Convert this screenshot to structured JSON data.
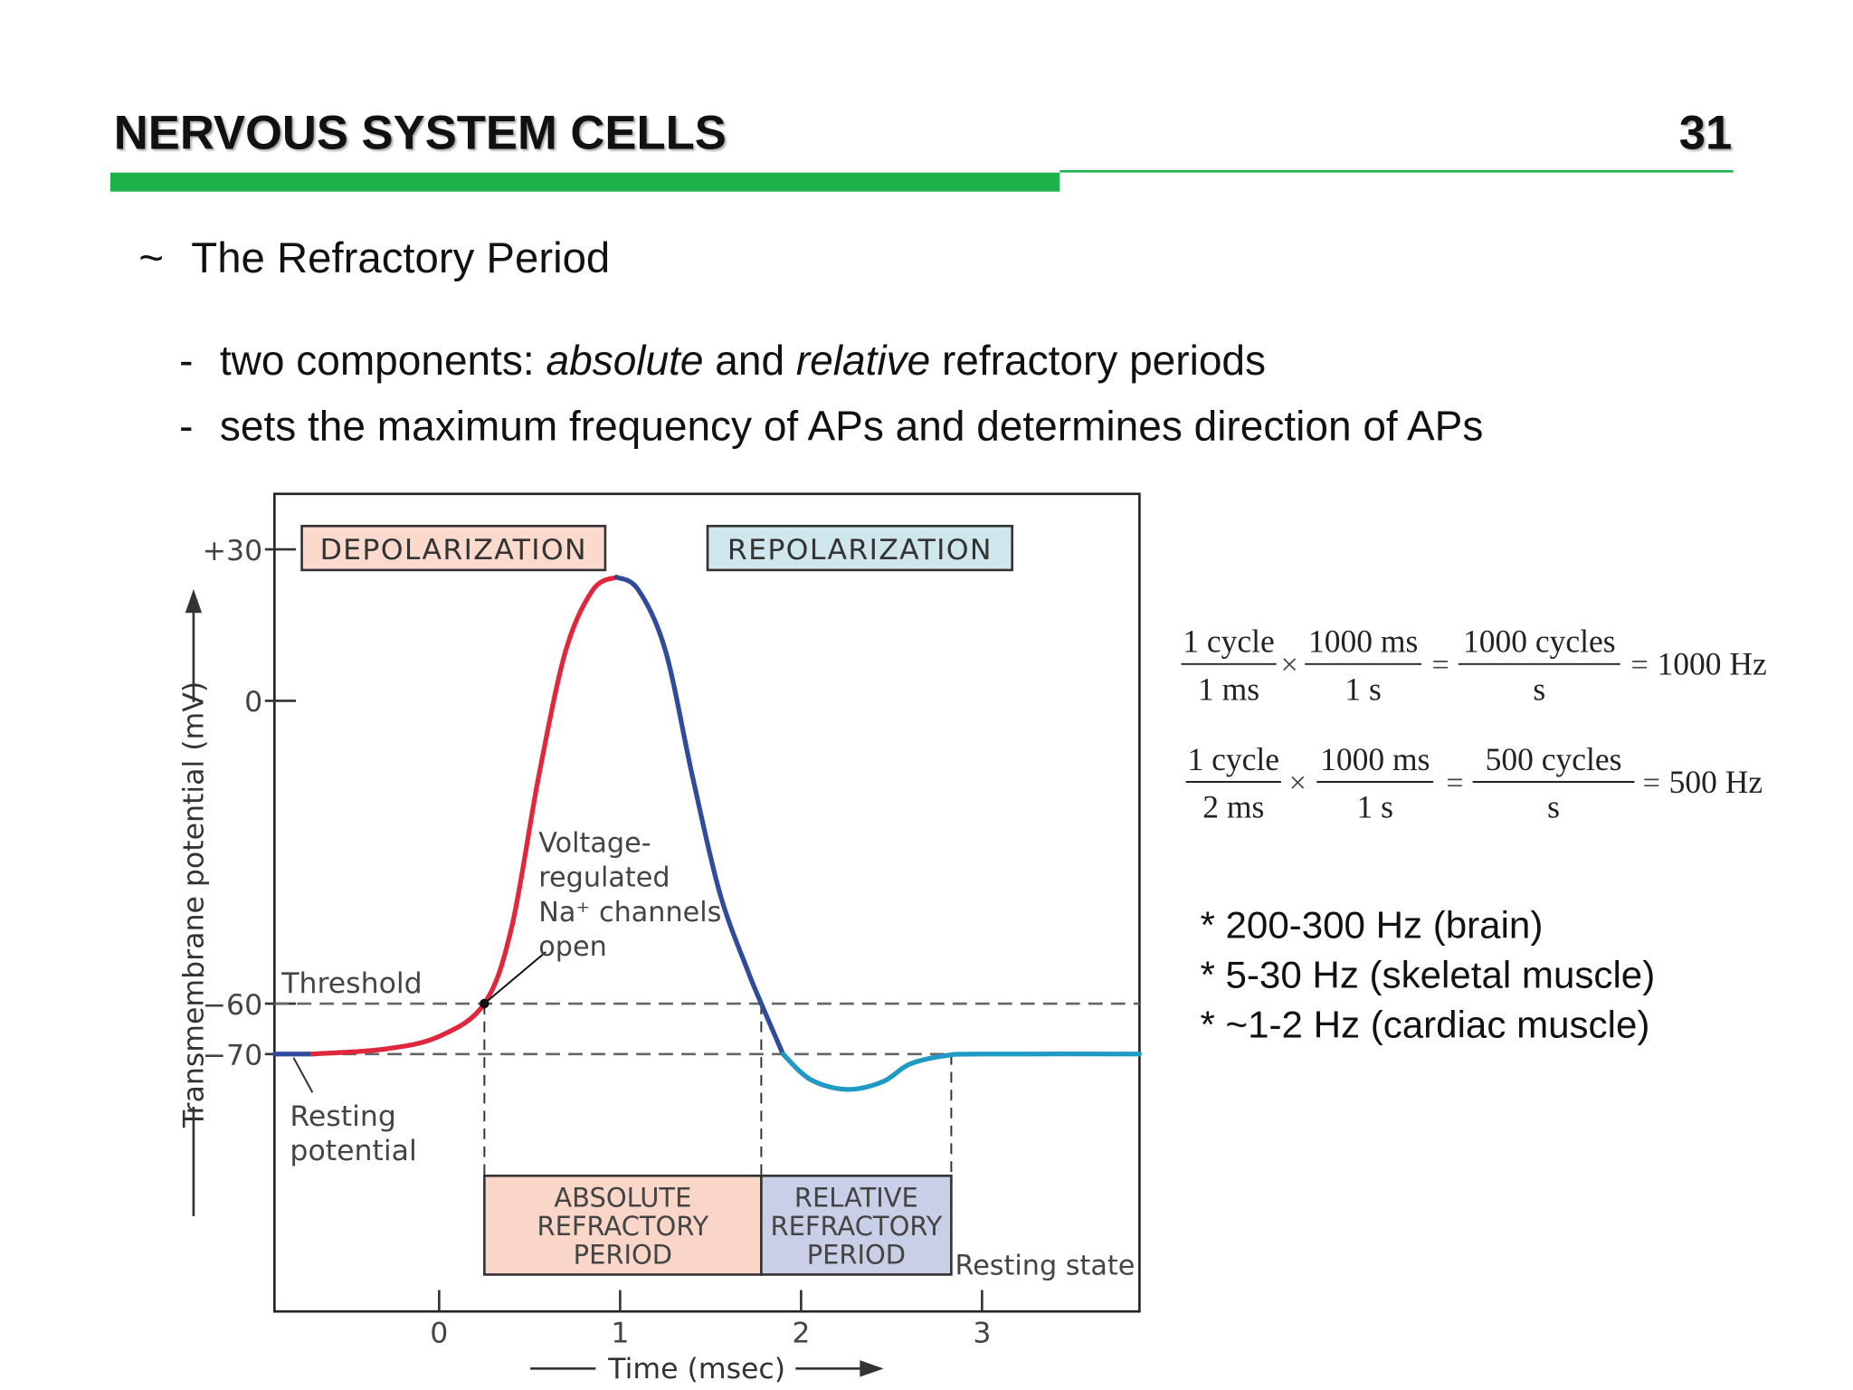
{
  "header": {
    "title": "NERVOUS SYSTEM CELLS",
    "page_number": "31"
  },
  "topic": {
    "marker": "~",
    "text": "The Refractory Period"
  },
  "bullets": [
    {
      "marker": "-",
      "segments": [
        {
          "text": "two components: ",
          "italic": false
        },
        {
          "text": "absolute",
          "italic": true
        },
        {
          "text": " and ",
          "italic": false
        },
        {
          "text": "relative",
          "italic": true
        },
        {
          "text": " refractory periods",
          "italic": false
        }
      ]
    },
    {
      "marker": "-",
      "segments": [
        {
          "text": "sets the maximum frequency of APs and determines direction of APs",
          "italic": false
        }
      ]
    }
  ],
  "figure": {
    "y_label": "Transmembrane potential (mV)",
    "x_label": "Time (msec)",
    "xlim": [
      -0.91,
      3.87
    ],
    "ylim": [
      -121,
      41
    ],
    "yticks": [
      {
        "value": 30,
        "label": "+30"
      },
      0,
      {
        "value": -60,
        "label": "−60"
      },
      {
        "value": -70,
        "label": "−70"
      }
    ],
    "xticks": [
      0,
      1,
      2,
      3
    ],
    "phases": [
      {
        "label": "DEPOLARIZATION",
        "color": "#fbd9cd"
      },
      {
        "label": "REPOLARIZATION",
        "color": "#cfe6ec"
      }
    ],
    "threshold": {
      "label": "Threshold",
      "value": -60
    },
    "resting": {
      "label": [
        "Resting",
        "potential"
      ],
      "value": -70
    },
    "na_note": [
      "Voltage-",
      "regulated",
      "Na⁺ channels",
      "open"
    ],
    "resting_state": "Resting state",
    "curve": [
      {
        "color": "#2f4b9a",
        "x": [
          -0.91,
          -0.7
        ],
        "y": [
          -70,
          -70
        ]
      },
      {
        "color": "#e0273c",
        "x": [
          -0.7,
          -0.3,
          0,
          0.25,
          0.4,
          0.55,
          0.7,
          0.85,
          0.98
        ],
        "y": [
          -70,
          -69,
          -66.5,
          -60,
          -45,
          -15,
          10,
          22,
          24.5
        ]
      },
      {
        "color": "#2f4b9a",
        "x": [
          0.98,
          1.1,
          1.25,
          1.4,
          1.55,
          1.7,
          1.78,
          1.9
        ],
        "y": [
          24.5,
          22,
          10,
          -15,
          -38,
          -53,
          -60,
          -70
        ]
      },
      {
        "color": "#1f9ac4",
        "x": [
          1.9,
          2.05,
          2.25,
          2.45,
          2.6,
          2.8,
          3.0,
          3.87
        ],
        "y": [
          -70,
          -75,
          -77,
          -75.5,
          -72,
          -70.3,
          -70,
          -70
        ]
      }
    ],
    "periods": [
      {
        "label": [
          "ABSOLUTE",
          "REFRACTORY",
          "PERIOD"
        ],
        "start": 0.25,
        "end": 1.78,
        "color": "#f9d6c8"
      },
      {
        "label": [
          "RELATIVE",
          "REFRACTORY",
          "PERIOD"
        ],
        "start": 1.78,
        "end": 2.83,
        "color": "#c9cfe6"
      }
    ]
  },
  "formulas": [
    {
      "num1": "1 cycle",
      "den1": "1 ms",
      "num2": "1000 ms",
      "den2": "1 s",
      "num3": "1000 cycles",
      "den3": "s",
      "result": "1000 Hz"
    },
    {
      "num1": "1 cycle",
      "den1": "2 ms",
      "num2": "1000 ms",
      "den2": "1 s",
      "num3": "500 cycles",
      "den3": "s",
      "result": "500 Hz"
    }
  ],
  "notes": [
    "* 200-300 Hz (brain)",
    "* 5-30 Hz (skeletal muscle)",
    "* ~1-2 Hz (cardiac muscle)"
  ]
}
